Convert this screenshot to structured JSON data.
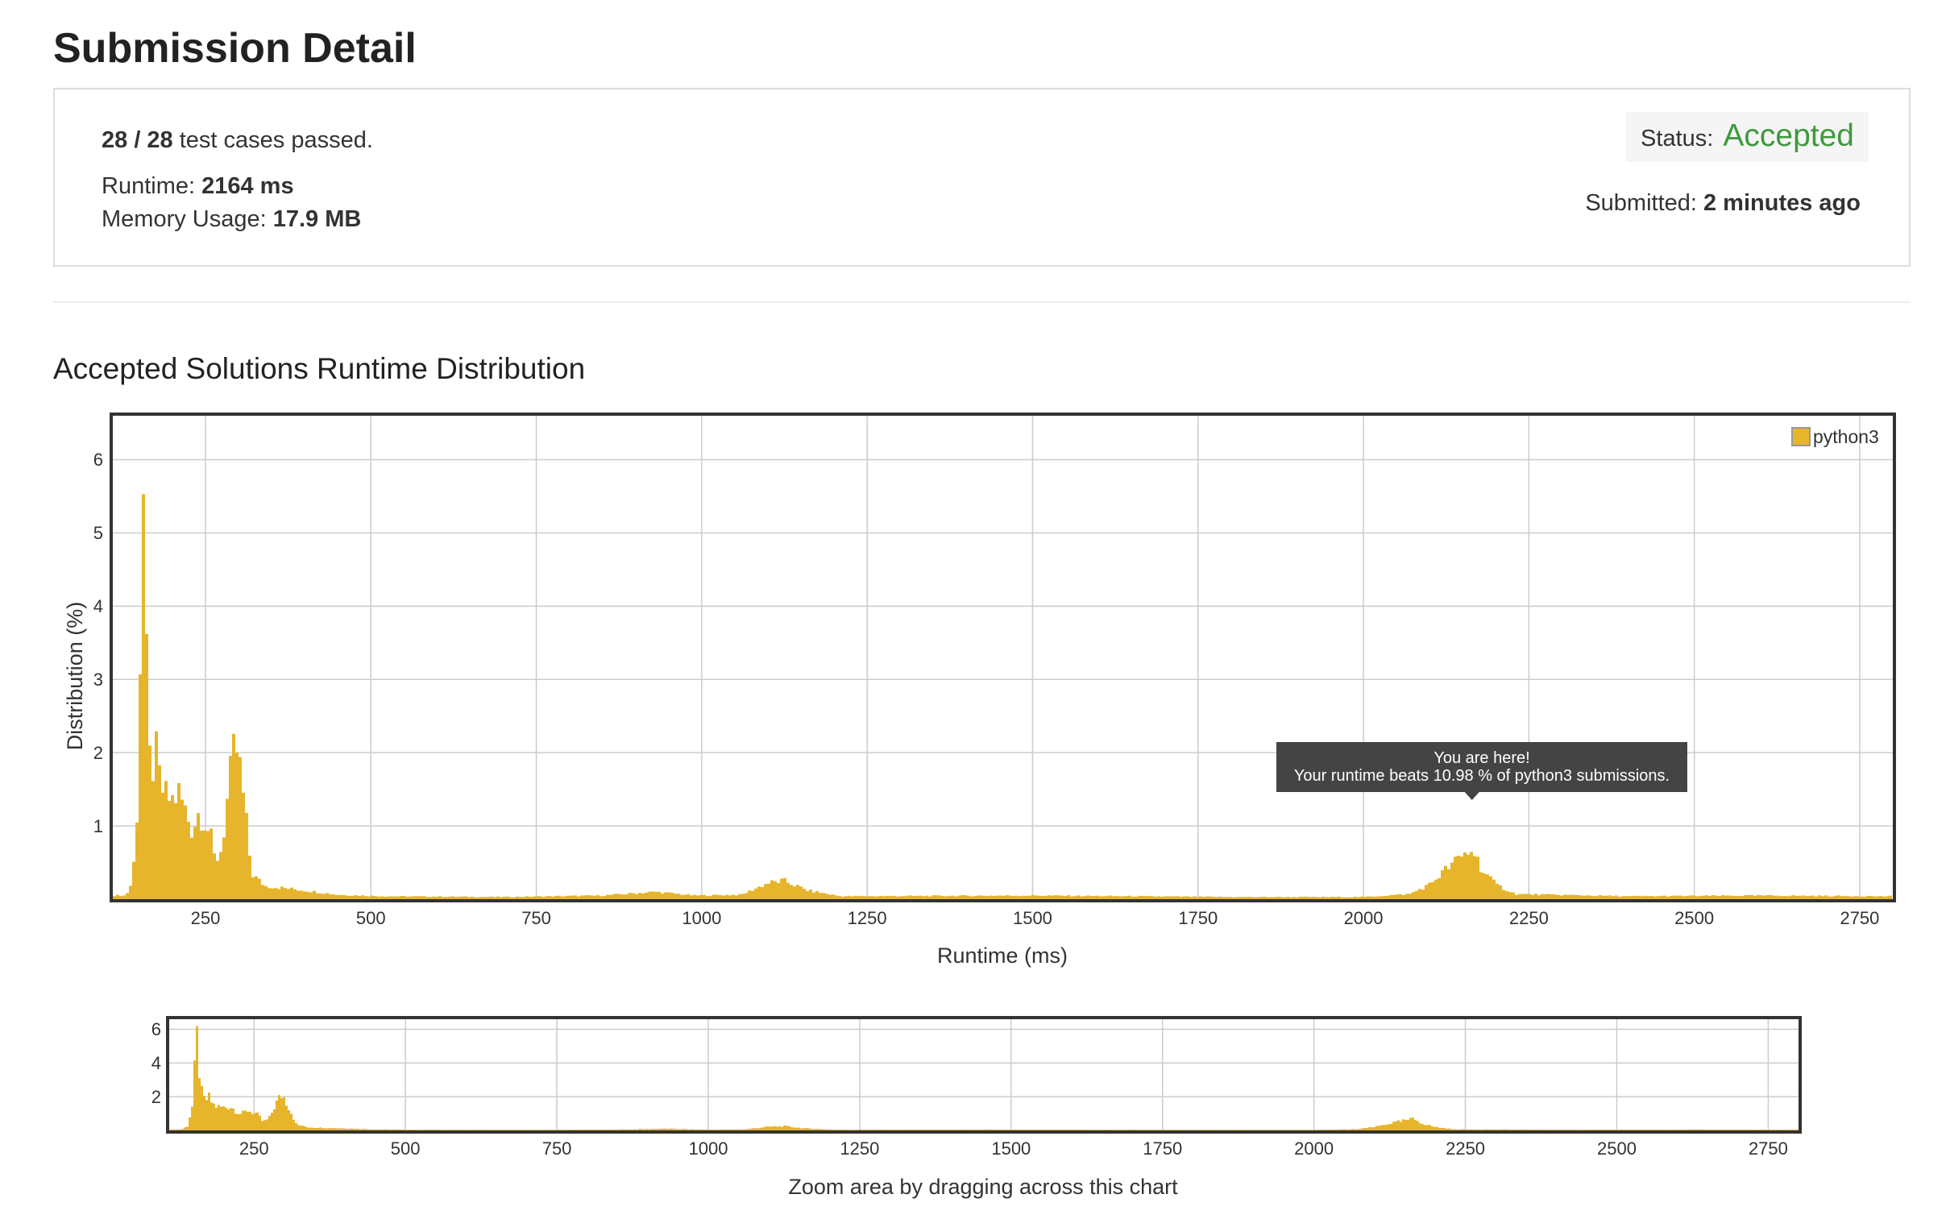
{
  "page": {
    "title": "Submission Detail"
  },
  "summary": {
    "tests_passed": "28 / 28",
    "tests_suffix": " test cases passed.",
    "runtime_label": "Runtime: ",
    "runtime_value": "2164 ms",
    "memory_label": "Memory Usage: ",
    "memory_value": "17.9 MB",
    "status_label": "Status:",
    "status_value": "Accepted",
    "submitted_label": "Submitted: ",
    "submitted_value": "2 minutes ago"
  },
  "colors": {
    "bar": "#e6b52b",
    "accepted": "#3e9a3b",
    "tooltip_bg": "#444444"
  },
  "distribution": {
    "title": "Accepted Solutions Runtime Distribution"
  },
  "chart_data": [
    {
      "type": "bar",
      "xlabel": "Runtime (ms)",
      "ylabel": "Distribution (%)",
      "xlim": [
        110,
        2800
      ],
      "ylim": [
        0,
        6.6
      ],
      "x_ticks": [
        250,
        500,
        750,
        1000,
        1250,
        1500,
        1750,
        2000,
        2250,
        2500,
        2750
      ],
      "y_ticks": [
        1,
        2,
        3,
        4,
        5,
        6
      ],
      "grid": true,
      "legend": "top-right",
      "series": [
        {
          "name": "python3",
          "peaks": [
            {
              "x": 130,
              "y": 0.05
            },
            {
              "x": 140,
              "y": 0.25
            },
            {
              "x": 148,
              "y": 1.4
            },
            {
              "x": 152,
              "y": 3.6
            },
            {
              "x": 156,
              "y": 5.6
            },
            {
              "x": 160,
              "y": 3.45
            },
            {
              "x": 165,
              "y": 1.9
            },
            {
              "x": 170,
              "y": 1.8
            },
            {
              "x": 176,
              "y": 1.95
            },
            {
              "x": 182,
              "y": 1.55
            },
            {
              "x": 190,
              "y": 1.4
            },
            {
              "x": 200,
              "y": 1.35
            },
            {
              "x": 210,
              "y": 1.45
            },
            {
              "x": 220,
              "y": 1.2
            },
            {
              "x": 230,
              "y": 0.95
            },
            {
              "x": 240,
              "y": 1.2
            },
            {
              "x": 250,
              "y": 1.05
            },
            {
              "x": 258,
              "y": 0.85
            },
            {
              "x": 265,
              "y": 0.5
            },
            {
              "x": 275,
              "y": 0.7
            },
            {
              "x": 285,
              "y": 1.5
            },
            {
              "x": 295,
              "y": 2.1
            },
            {
              "x": 300,
              "y": 1.95
            },
            {
              "x": 310,
              "y": 1.2
            },
            {
              "x": 320,
              "y": 0.35
            },
            {
              "x": 340,
              "y": 0.18
            },
            {
              "x": 400,
              "y": 0.12
            },
            {
              "x": 450,
              "y": 0.06
            },
            {
              "x": 520,
              "y": 0.04
            },
            {
              "x": 700,
              "y": 0.03
            },
            {
              "x": 850,
              "y": 0.05
            },
            {
              "x": 930,
              "y": 0.1
            },
            {
              "x": 990,
              "y": 0.05
            },
            {
              "x": 1060,
              "y": 0.06
            },
            {
              "x": 1100,
              "y": 0.22
            },
            {
              "x": 1125,
              "y": 0.25
            },
            {
              "x": 1160,
              "y": 0.12
            },
            {
              "x": 1210,
              "y": 0.04
            },
            {
              "x": 1500,
              "y": 0.05
            },
            {
              "x": 1800,
              "y": 0.03
            },
            {
              "x": 2000,
              "y": 0.03
            },
            {
              "x": 2070,
              "y": 0.07
            },
            {
              "x": 2100,
              "y": 0.2
            },
            {
              "x": 2130,
              "y": 0.45
            },
            {
              "x": 2155,
              "y": 0.62
            },
            {
              "x": 2165,
              "y": 0.68
            },
            {
              "x": 2180,
              "y": 0.4
            },
            {
              "x": 2200,
              "y": 0.2
            },
            {
              "x": 2230,
              "y": 0.07
            },
            {
              "x": 2400,
              "y": 0.04
            },
            {
              "x": 2600,
              "y": 0.05
            },
            {
              "x": 2790,
              "y": 0.04
            }
          ]
        }
      ],
      "tooltip": {
        "line1": "You are here!",
        "line2": "Your runtime beats 10.98 % of python3 submissions.",
        "x": 2164
      }
    },
    {
      "type": "bar",
      "xlabel": "Zoom area by dragging across this chart",
      "xlim": [
        110,
        2800
      ],
      "ylim": [
        0,
        6.6
      ],
      "x_ticks": [
        250,
        500,
        750,
        1000,
        1250,
        1500,
        1750,
        2000,
        2250,
        2500,
        2750
      ],
      "y_ticks": [
        2,
        4,
        6
      ],
      "grid": true,
      "series_ref": "python3"
    }
  ]
}
